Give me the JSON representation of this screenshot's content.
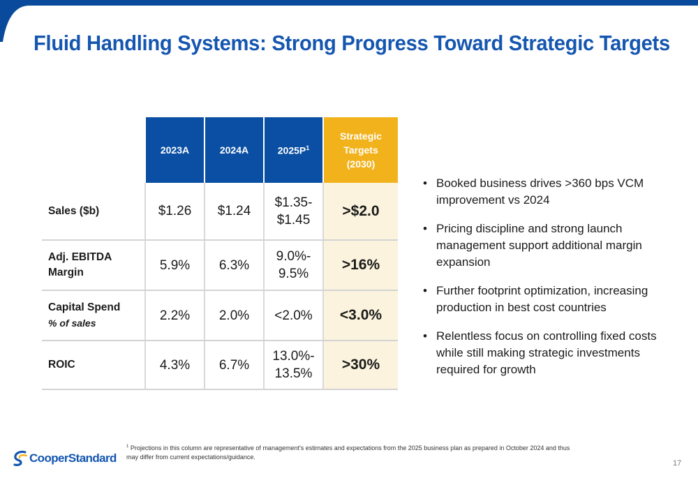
{
  "title": "Fluid Handling Systems: Strong Progress Toward Strategic Targets",
  "colors": {
    "brand_blue": "#0a4fa3",
    "accent_gold": "#f1b21c",
    "target_fill": "#fbf3dd"
  },
  "table": {
    "headers": {
      "col1": "2023A",
      "col2": "2024A",
      "col3": "2025P",
      "col3_sup": "1",
      "target_line1": "Strategic",
      "target_line2": "Targets",
      "target_line3": "(2030)"
    },
    "rows": [
      {
        "label": "Sales ($b)",
        "sub": "",
        "v2023": "$1.26",
        "v2024": "$1.24",
        "v2025_line1": "$1.35-",
        "v2025_line2": "$1.45",
        "target": ">$2.0"
      },
      {
        "label_line1": "Adj. EBITDA",
        "label_line2": "Margin",
        "v2023": "5.9%",
        "v2024": "6.3%",
        "v2025_line1": "9.0%-",
        "v2025_line2": "9.5%",
        "target": ">16%"
      },
      {
        "label": "Capital Spend",
        "sub": "% of sales",
        "v2023": "2.2%",
        "v2024": "2.0%",
        "v2025_line1": "<2.0%",
        "v2025_line2": "",
        "target": "<3.0%"
      },
      {
        "label": "ROIC",
        "sub": "",
        "v2023": "4.3%",
        "v2024": "6.7%",
        "v2025_line1": "13.0%-",
        "v2025_line2": "13.5%",
        "target": ">30%"
      }
    ]
  },
  "bullets": [
    "Booked business drives >360 bps VCM improvement vs 2024",
    "Pricing discipline and strong launch management support additional margin expansion",
    "Further footprint optimization, increasing production in best cost countries",
    "Relentless focus on controlling fixed costs while still making strategic investments required for growth"
  ],
  "footnote": {
    "marker": "1",
    "text": " Projections in this column are representative of management's estimates and expectations from the 2025 business plan as prepared in October 2024 and thus may differ from current expectations/guidance."
  },
  "logo_text": "CooperStandard",
  "page_number": "17"
}
